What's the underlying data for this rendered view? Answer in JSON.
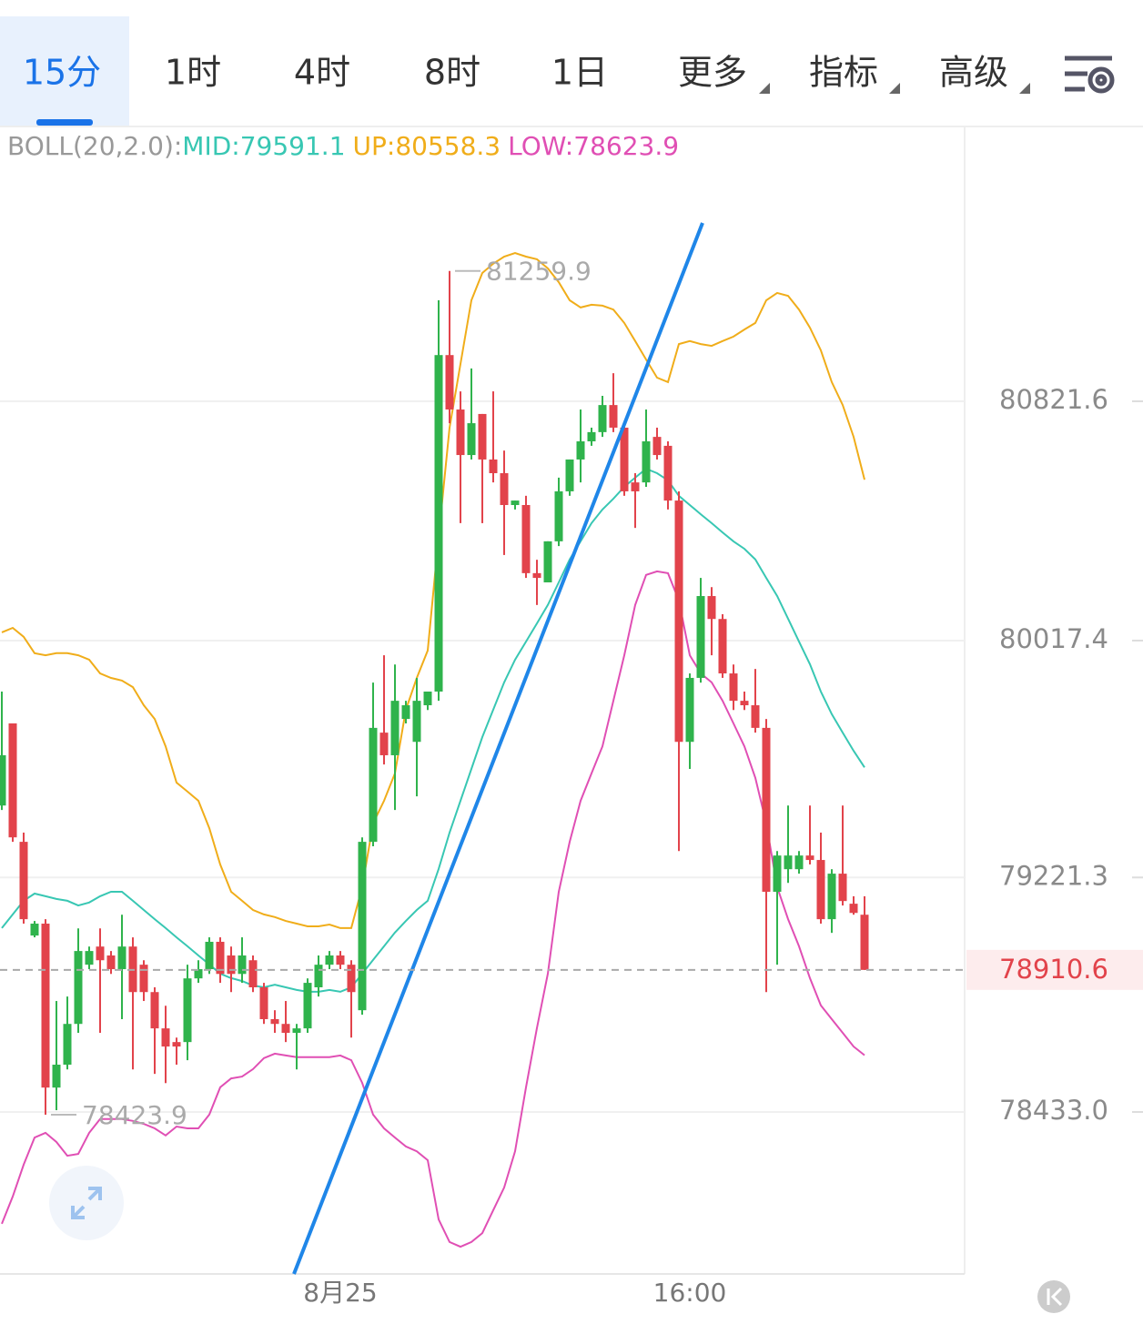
{
  "toolbar": {
    "tabs": [
      "15分",
      "1时",
      "4时",
      "8时",
      "1日",
      "更多",
      "指标",
      "高级"
    ]
  },
  "chart_data": {
    "type": "candlestick",
    "indicator": "BOLL(20,2.0):",
    "categories": [
      null,
      null,
      null,
      null,
      null,
      null,
      null,
      null,
      null,
      null,
      null,
      null,
      null,
      null,
      null,
      null,
      null,
      null,
      null,
      null,
      null,
      null,
      null,
      null,
      null,
      null,
      null,
      null,
      null,
      null,
      null,
      "8月25",
      null,
      null,
      null,
      null,
      null,
      null,
      null,
      null,
      null,
      null,
      null,
      null,
      null,
      null,
      null,
      null,
      null,
      null,
      null,
      null,
      null,
      null,
      null,
      null,
      null,
      null,
      null,
      null,
      null,
      null,
      null,
      "16:00",
      null,
      null,
      null,
      null,
      null,
      null,
      null,
      null,
      null,
      null,
      null,
      null,
      null,
      null,
      null,
      null
    ],
    "up_color": "#2fb34c",
    "down_color": "#e2434b",
    "open": [
      79463,
      79739,
      79341,
      79026,
      79066,
      78515,
      78592,
      78729,
      78928,
      78989,
      78959,
      78913,
      78989,
      78928,
      78836,
      78714,
      78668,
      78668,
      78882,
      78913,
      79005,
      78959,
      78897,
      78943,
      78852,
      78745,
      78729,
      78699,
      78714,
      78852,
      78928,
      78959,
      78928,
      78775,
      79341,
      79708,
      79632,
      79754,
      79677,
      79800,
      79846,
      80977,
      80794,
      80641,
      80779,
      80626,
      80580,
      80473,
      80473,
      80244,
      80213,
      80351,
      80519,
      80626,
      80687,
      80718,
      80809,
      80733,
      80549,
      80549,
      80702,
      80672,
      80488,
      79677,
      79892,
      80167,
      80090,
      79907,
      79815,
      79800,
      79724,
      79173,
      79249,
      79249,
      79295,
      79280,
      79081,
      79234,
      79133,
      79096
    ],
    "high": [
      79846,
      79739,
      79372,
      79075,
      79081,
      78806,
      78821,
      79050,
      78989,
      79050,
      78974,
      79096,
      79020,
      78943,
      78852,
      78790,
      78683,
      78928,
      78943,
      79020,
      79020,
      78989,
      79020,
      78959,
      78867,
      78775,
      78806,
      78729,
      78882,
      78959,
      78974,
      78974,
      78943,
      79356,
      79876,
      79968,
      79937,
      79815,
      79892,
      79846,
      81161,
      81259.9,
      80855,
      80932,
      80779,
      80855,
      80656,
      80488,
      80504,
      80289,
      80351,
      80565,
      80626,
      80794,
      80733,
      80840,
      80916,
      80748,
      80580,
      80794,
      80733,
      80687,
      80519,
      79907,
      80228,
      80197,
      80106,
      79937,
      79846,
      79922,
      79754,
      79310,
      79463,
      79310,
      79463,
      79372,
      79249,
      79463,
      79158,
      79158
    ],
    "low": [
      79448,
      79341,
      79066,
      79020,
      78423.9,
      78439,
      78576,
      78699,
      78913,
      78699,
      78897,
      78745,
      78576,
      78806,
      78561,
      78530,
      78592,
      78607,
      78867,
      78897,
      78867,
      78836,
      78867,
      78836,
      78729,
      78699,
      78668,
      78576,
      78699,
      78821,
      78913,
      78913,
      78683,
      78760,
      79326,
      79601,
      79448,
      79739,
      79494,
      79784,
      79815,
      80748,
      80412,
      80626,
      80412,
      80549,
      80305,
      80458,
      80228,
      80137,
      80213,
      80335,
      80504,
      80549,
      80672,
      80702,
      80718,
      80504,
      80396,
      80534,
      80626,
      80458,
      79310,
      79586,
      79876,
      79968,
      79892,
      79784,
      79784,
      79708,
      78836,
      78928,
      79203,
      79234,
      79265,
      79066,
      79035,
      79127,
      79096,
      78910.6
    ],
    "close": [
      79632,
      79356,
      79081,
      79066,
      78515,
      78592,
      78729,
      78974,
      78974,
      78943,
      78913,
      78989,
      78836,
      78836,
      78714,
      78653,
      78653,
      78882,
      78913,
      79005,
      78897,
      78897,
      78959,
      78852,
      78745,
      78729,
      78699,
      78714,
      78867,
      78928,
      78959,
      78928,
      78836,
      79341,
      79724,
      79632,
      79815,
      79800,
      79815,
      79846,
      80977,
      80794,
      80641,
      80748,
      80626,
      80580,
      80473,
      80488,
      80244,
      80228,
      80351,
      80519,
      80626,
      80687,
      80718,
      80809,
      80733,
      80519,
      80519,
      80687,
      80641,
      80488,
      79677,
      79892,
      80167,
      80090,
      79907,
      79815,
      79800,
      79724,
      79173,
      79295,
      79295,
      79295,
      79280,
      79081,
      79234,
      79142,
      79102,
      78910.6
    ],
    "series": [
      {
        "name": "MID:",
        "color": "#38c7b3",
        "values": [
          79051,
          79097,
          79143,
          79167,
          79158,
          79149,
          79143,
          79127,
          79137,
          79158,
          79173,
          79173,
          79143,
          79112,
          79081,
          79051,
          79020,
          78990,
          78959,
          78929,
          78898,
          78883,
          78873,
          78858,
          78852,
          78861,
          78852,
          78843,
          78837,
          78837,
          78843,
          78837,
          78852,
          78898,
          78944,
          78990,
          79036,
          79075,
          79112,
          79143,
          79250,
          79372,
          79479,
          79586,
          79693,
          79785,
          79877,
          79953,
          80014,
          80075,
          80137,
          80213,
          80290,
          80351,
          80412,
          80458,
          80494,
          80534,
          80565,
          80595,
          80580,
          80556,
          80504,
          80473,
          80442,
          80412,
          80381,
          80351,
          80326,
          80290,
          80228,
          80167,
          80091,
          80014,
          79938,
          79846,
          79770,
          79708,
          79647,
          79591.1
        ]
      },
      {
        "name": "UP:",
        "color": "#f0ad1a",
        "values": [
          80045,
          80060,
          80030,
          79975,
          79968,
          79975,
          79975,
          79968,
          79953,
          79907,
          79892,
          79883,
          79861,
          79800,
          79754,
          79662,
          79540,
          79510,
          79479,
          79387,
          79265,
          79173,
          79143,
          79112,
          79097,
          79088,
          79075,
          79066,
          79057,
          79057,
          79063,
          79051,
          79051,
          79189,
          79403,
          79479,
          79571,
          79785,
          79892,
          79984,
          80366,
          80733,
          80947,
          81161,
          81253,
          81284,
          81308,
          81320,
          81308,
          81299,
          81268,
          81222,
          81161,
          81137,
          81146,
          81143,
          81130,
          81085,
          81024,
          80962,
          80901,
          80886,
          81014,
          81024,
          81014,
          81008,
          81024,
          81039,
          81063,
          81085,
          81161,
          81186,
          81176,
          81130,
          81069,
          80993,
          80886,
          80809,
          80702,
          80558.3
        ]
      },
      {
        "name": "LOW:",
        "color": "#e04fb4",
        "values": [
          78057,
          78149,
          78256,
          78347,
          78363,
          78332,
          78286,
          78292,
          78363,
          78409,
          78409,
          78409,
          78403,
          78393,
          78378,
          78354,
          78384,
          78378,
          78378,
          78424,
          78516,
          78546,
          78552,
          78577,
          78614,
          78629,
          78623,
          78617,
          78617,
          78617,
          78617,
          78623,
          78607,
          78531,
          78424,
          78378,
          78347,
          78317,
          78301,
          78271,
          78072,
          77996,
          77980,
          77996,
          78026,
          78103,
          78179,
          78301,
          78516,
          78715,
          78898,
          79173,
          79341,
          79479,
          79571,
          79662,
          79815,
          79968,
          80137,
          80238,
          80250,
          80244,
          80152,
          79968,
          79907,
          79877,
          79815,
          79739,
          79662,
          79556,
          79403,
          79189,
          79081,
          78990,
          78883,
          78791,
          78745,
          78699,
          78653,
          78623.9
        ]
      }
    ],
    "ylim": [
      77888.6,
      81742.2
    ],
    "yticks": [
      80821.6,
      80017.4,
      79221.3,
      {
        "value": 78433,
        "label": "78433.0"
      }
    ],
    "grid": true
  }
}
